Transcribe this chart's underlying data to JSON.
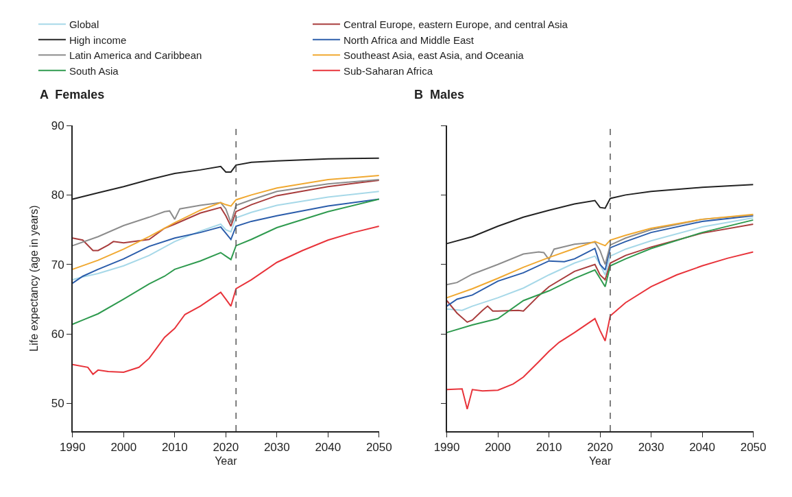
{
  "chart_data": [
    {
      "type": "line",
      "title": "A  Females",
      "xlabel": "Year",
      "ylabel": "Life expectancy (age in years)",
      "xlim": [
        1990,
        2050
      ],
      "xticks": [
        1990,
        2000,
        2010,
        2020,
        2030,
        2040,
        2050
      ],
      "ylim": [
        46,
        90
      ],
      "yticks": [
        50,
        60,
        70,
        80,
        90
      ],
      "legend": "top",
      "marker": "none",
      "line_style": "solid",
      "ref_lines": [
        {
          "axis": "x",
          "value": 2022,
          "color": "#555555",
          "line_style": "dashed"
        }
      ],
      "series": [
        {
          "name": "Global",
          "color": "#a6d8e8",
          "x": [
            1990,
            1992,
            1995,
            2000,
            2005,
            2010,
            2015,
            2019,
            2020,
            2021,
            2022,
            2025,
            2030,
            2040,
            2050
          ],
          "values": [
            67.8,
            68.2,
            68.7,
            69.8,
            71.3,
            73.3,
            74.8,
            75.8,
            75.0,
            74.7,
            76.7,
            77.5,
            78.5,
            79.7,
            80.5
          ]
        },
        {
          "name": "Central Europe, eastern Europe, and central Asia",
          "color": "#a83c3c",
          "x": [
            1990,
            1992,
            1994,
            1995,
            1997,
            1998,
            2000,
            2005,
            2008,
            2010,
            2015,
            2019,
            2020,
            2021,
            2022,
            2025,
            2030,
            2040,
            2050
          ],
          "values": [
            73.8,
            73.5,
            72.0,
            72.0,
            72.8,
            73.3,
            73.1,
            73.6,
            75.2,
            75.8,
            77.4,
            78.2,
            77.0,
            75.5,
            77.6,
            78.6,
            79.9,
            81.2,
            82.1
          ]
        },
        {
          "name": "High income",
          "color": "#222222",
          "x": [
            1990,
            1995,
            2000,
            2005,
            2010,
            2015,
            2019,
            2020,
            2021,
            2022,
            2025,
            2030,
            2040,
            2050
          ],
          "values": [
            79.4,
            80.3,
            81.2,
            82.2,
            83.1,
            83.6,
            84.1,
            83.3,
            83.3,
            84.3,
            84.7,
            84.9,
            85.2,
            85.3
          ]
        },
        {
          "name": "North Africa and Middle East",
          "color": "#2a5caa",
          "x": [
            1990,
            1992,
            1995,
            2000,
            2005,
            2010,
            2015,
            2019,
            2020,
            2021,
            2022,
            2025,
            2030,
            2040,
            2050
          ],
          "values": [
            67.3,
            68.3,
            69.3,
            70.8,
            72.6,
            73.8,
            74.6,
            75.4,
            74.5,
            73.6,
            75.5,
            76.2,
            77.0,
            78.4,
            79.4
          ]
        },
        {
          "name": "Latin America and Caribbean",
          "color": "#8c8c8c",
          "x": [
            1990,
            1995,
            2000,
            2005,
            2008,
            2009,
            2010,
            2011,
            2015,
            2019,
            2020,
            2021,
            2022,
            2025,
            2030,
            2040,
            2050
          ],
          "values": [
            72.7,
            74.0,
            75.6,
            76.8,
            77.6,
            77.7,
            76.5,
            78.0,
            78.5,
            78.9,
            78.0,
            76.0,
            78.5,
            79.3,
            80.5,
            81.6,
            82.2
          ]
        },
        {
          "name": "Southeast Asia, east Asia, and Oceania",
          "color": "#f0a830",
          "x": [
            1990,
            1995,
            2000,
            2005,
            2010,
            2015,
            2019,
            2020,
            2021,
            2022,
            2025,
            2030,
            2040,
            2050
          ],
          "values": [
            69.3,
            70.6,
            72.2,
            74.0,
            76.0,
            77.8,
            78.9,
            78.6,
            78.4,
            79.3,
            80.0,
            81.0,
            82.2,
            82.8
          ]
        },
        {
          "name": "South Asia",
          "color": "#2e9a4e",
          "x": [
            1990,
            1992,
            1995,
            2000,
            2005,
            2008,
            2010,
            2015,
            2019,
            2020,
            2021,
            2022,
            2025,
            2030,
            2040,
            2050
          ],
          "values": [
            61.4,
            62.0,
            62.9,
            65.0,
            67.2,
            68.3,
            69.3,
            70.5,
            71.7,
            71.2,
            70.7,
            72.7,
            73.6,
            75.3,
            77.6,
            79.4
          ]
        },
        {
          "name": "Sub-Saharan Africa",
          "color": "#e8333a",
          "x": [
            1990,
            1993,
            1994,
            1995,
            1997,
            2000,
            2003,
            2005,
            2008,
            2010,
            2012,
            2015,
            2019,
            2020,
            2021,
            2022,
            2025,
            2030,
            2035,
            2040,
            2045,
            2050
          ],
          "values": [
            55.6,
            55.2,
            54.2,
            54.8,
            54.6,
            54.5,
            55.2,
            56.5,
            59.5,
            60.8,
            62.8,
            64.0,
            66.0,
            65.0,
            64.0,
            66.5,
            67.8,
            70.3,
            72.0,
            73.5,
            74.6,
            75.5
          ]
        }
      ]
    },
    {
      "type": "line",
      "title": "B  Males",
      "xlabel": "Year",
      "xlim": [
        1990,
        2050
      ],
      "xticks": [
        1990,
        2000,
        2010,
        2020,
        2030,
        2040,
        2050
      ],
      "ylim": [
        46,
        90
      ],
      "yticks": [
        50,
        60,
        70,
        80,
        90
      ],
      "tick_labels": "x",
      "marker": "none",
      "line_style": "solid",
      "ref_lines": [
        {
          "axis": "x",
          "value": 2022,
          "color": "#555555",
          "line_style": "dashed"
        }
      ],
      "series": [
        {
          "color": "#a6d8e8",
          "x": [
            1990,
            1993,
            1995,
            2000,
            2005,
            2010,
            2015,
            2019,
            2020,
            2021,
            2022,
            2025,
            2030,
            2040,
            2050
          ],
          "values": [
            63.6,
            63.4,
            64.0,
            65.2,
            66.6,
            68.5,
            70.2,
            71.2,
            70.0,
            68.5,
            71.2,
            72.2,
            73.4,
            75.4,
            76.7
          ]
        },
        {
          "color": "#a83c3c",
          "x": [
            1990,
            1992,
            1994,
            1995,
            1997,
            1998,
            1999,
            2000,
            2004,
            2005,
            2008,
            2010,
            2015,
            2019,
            2020,
            2021,
            2022,
            2025,
            2030,
            2040,
            2050
          ],
          "values": [
            64.8,
            63.0,
            61.7,
            62.0,
            63.4,
            64.0,
            63.3,
            63.3,
            63.4,
            63.3,
            65.5,
            66.8,
            69.0,
            70.0,
            68.5,
            67.8,
            70.2,
            71.3,
            72.5,
            74.5,
            75.8
          ]
        },
        {
          "color": "#222222",
          "x": [
            1990,
            1995,
            2000,
            2005,
            2010,
            2015,
            2019,
            2020,
            2021,
            2022,
            2025,
            2030,
            2040,
            2050
          ],
          "values": [
            73.0,
            74.0,
            75.5,
            76.8,
            77.8,
            78.7,
            79.2,
            78.2,
            78.1,
            79.5,
            80.0,
            80.5,
            81.1,
            81.5
          ]
        },
        {
          "color": "#2a5caa",
          "x": [
            1990,
            1992,
            1995,
            2000,
            2005,
            2010,
            2013,
            2015,
            2019,
            2020,
            2021,
            2022,
            2025,
            2030,
            2040,
            2050
          ],
          "values": [
            64.0,
            65.0,
            65.6,
            67.6,
            68.8,
            70.5,
            70.4,
            70.8,
            72.3,
            70.0,
            69.2,
            72.4,
            73.3,
            74.6,
            76.2,
            77.0
          ]
        },
        {
          "color": "#8c8c8c",
          "x": [
            1990,
            1992,
            1995,
            2000,
            2005,
            2008,
            2009,
            2010,
            2011,
            2015,
            2019,
            2020,
            2021,
            2022,
            2025,
            2030,
            2040,
            2050
          ],
          "values": [
            67.1,
            67.4,
            68.6,
            70.0,
            71.5,
            71.8,
            71.7,
            70.7,
            72.2,
            72.9,
            73.2,
            72.0,
            70.0,
            72.8,
            73.8,
            75.0,
            76.5,
            77.1
          ]
        },
        {
          "color": "#f0a830",
          "x": [
            1990,
            1995,
            2000,
            2005,
            2010,
            2015,
            2019,
            2020,
            2021,
            2022,
            2025,
            2030,
            2040,
            2050
          ],
          "values": [
            65.2,
            66.5,
            68.0,
            69.6,
            71.0,
            72.3,
            73.3,
            73.0,
            72.7,
            73.5,
            74.2,
            75.2,
            76.5,
            77.2
          ]
        },
        {
          "color": "#2e9a4e",
          "x": [
            1990,
            1995,
            2000,
            2005,
            2010,
            2015,
            2019,
            2020,
            2021,
            2022,
            2025,
            2030,
            2040,
            2050
          ],
          "values": [
            60.2,
            61.3,
            62.2,
            64.8,
            66.2,
            68.0,
            69.2,
            68.0,
            66.8,
            69.8,
            70.8,
            72.3,
            74.6,
            76.4
          ]
        },
        {
          "color": "#e8333a",
          "x": [
            1990,
            1993,
            1994,
            1995,
            1997,
            2000,
            2003,
            2005,
            2008,
            2010,
            2012,
            2015,
            2019,
            2020,
            2021,
            2022,
            2025,
            2030,
            2035,
            2040,
            2045,
            2050
          ],
          "values": [
            52.0,
            52.1,
            49.2,
            52.0,
            51.8,
            51.9,
            52.8,
            53.8,
            56.0,
            57.5,
            58.8,
            60.2,
            62.2,
            60.5,
            59.0,
            62.6,
            64.5,
            66.8,
            68.5,
            69.8,
            70.9,
            71.8
          ]
        }
      ]
    }
  ]
}
